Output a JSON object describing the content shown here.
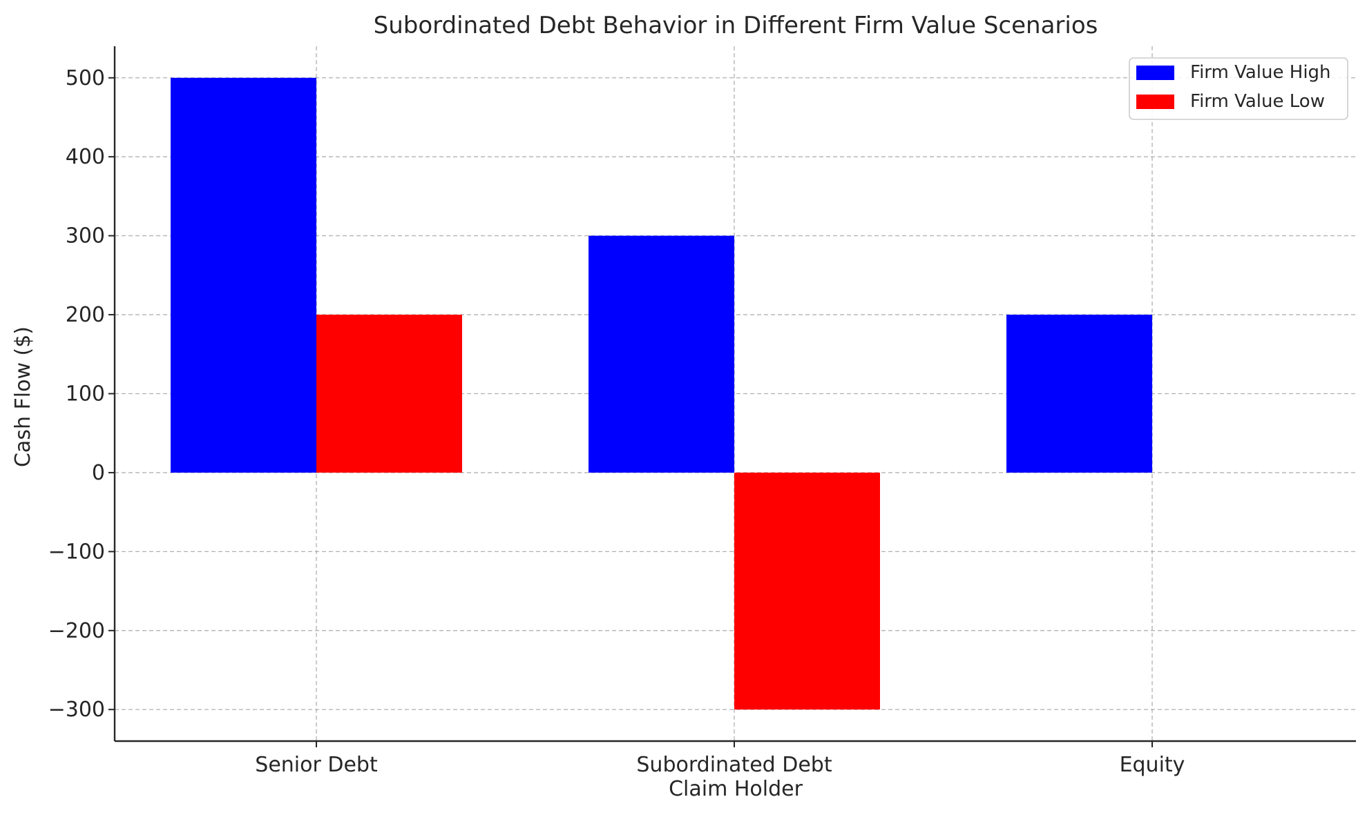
{
  "chart_data": {
    "type": "bar",
    "title": "Subordinated Debt Behavior in Different Firm Value Scenarios",
    "xlabel": "Claim Holder",
    "ylabel": "Cash Flow ($)",
    "categories": [
      "Senior Debt",
      "Subordinated Debt",
      "Equity"
    ],
    "series": [
      {
        "name": "Firm Value High",
        "color": "#0000ff",
        "values": [
          500,
          300,
          200
        ]
      },
      {
        "name": "Firm Value Low",
        "color": "#ff0000",
        "values": [
          200,
          -300,
          0
        ]
      }
    ],
    "ylim": [
      -340,
      540
    ],
    "yticks": [
      500,
      400,
      300,
      200,
      100,
      0,
      -100,
      -200,
      -300
    ],
    "ytick_labels": [
      "500",
      "400",
      "300",
      "200",
      "100",
      "0",
      "−100",
      "−200",
      "−300"
    ],
    "grid": true,
    "legend": "top-right"
  }
}
